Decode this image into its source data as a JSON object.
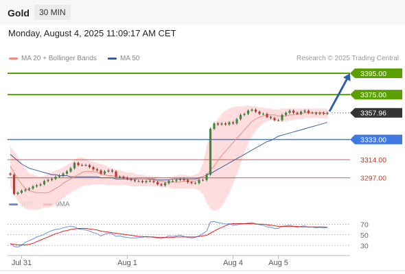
{
  "header": {
    "symbol": "Gold",
    "timeframe": "30 MIN"
  },
  "timestamp": "Monday, August 4, 2025 11:09:17 AM CET",
  "legend_main": [
    {
      "label": "MA 20 + Bollinger Bands",
      "color": "#f28b82"
    },
    {
      "label": "MA 50",
      "color": "#3d5a99"
    }
  ],
  "legend_rsi": [
    {
      "label": "RSI",
      "color": "#6b8fd4"
    },
    {
      "label": "9MA",
      "color": "#e02020"
    }
  ],
  "source": "Research © 2025 Trading Central",
  "colors": {
    "up": "#3a8a3a",
    "down": "#c0392b",
    "target": "#5aa000",
    "pivot": "#3f78e0",
    "support": "#c0392b",
    "current": "#333333",
    "band": "#fdd7d7"
  },
  "chart_data": {
    "type": "candlestick",
    "title": "Gold",
    "timeframe": "30 MIN",
    "x_ticks": [
      "Jul 31",
      "Aug 1",
      "Aug 4",
      "Aug 5"
    ],
    "x_tick_index": [
      3,
      31,
      59,
      71
    ],
    "ylim": [
      3282,
      3404
    ],
    "levels": [
      {
        "value": 3395.0,
        "label": "3395.00",
        "kind": "target"
      },
      {
        "value": 3375.0,
        "label": "3375.00",
        "kind": "target"
      },
      {
        "value": 3357.96,
        "label": "3357.96",
        "kind": "current"
      },
      {
        "value": 3333.0,
        "label": "3333.00",
        "kind": "pivot"
      },
      {
        "value": 3314.0,
        "label": "3314.00",
        "kind": "support"
      },
      {
        "value": 3297.0,
        "label": "3297.00",
        "kind": "support"
      }
    ],
    "arrow": {
      "from": 3357.96,
      "to": 3395.0
    },
    "close": [
      3300,
      3282,
      3283,
      3285,
      3286,
      3287,
      3289,
      3290,
      3291,
      3294,
      3295,
      3296,
      3298,
      3299,
      3301,
      3303,
      3306,
      3311,
      3309,
      3309,
      3309,
      3307,
      3305,
      3304,
      3301,
      3303,
      3304,
      3303,
      3298,
      3298,
      3297,
      3296,
      3295,
      3294,
      3294,
      3293,
      3294,
      3294,
      3293,
      3291,
      3290,
      3292,
      3294,
      3294,
      3295,
      3296,
      3295,
      3293,
      3292,
      3292,
      3295,
      3295,
      3300,
      3343,
      3348,
      3347,
      3348,
      3347,
      3349,
      3348,
      3352,
      3356,
      3357,
      3360,
      3361,
      3359,
      3357,
      3357,
      3354,
      3353,
      3351,
      3351,
      3356,
      3358,
      3360,
      3358,
      3357,
      3359,
      3360,
      3358,
      3358,
      3357,
      3358,
      3357,
      3358
    ],
    "ma20": [
      3308,
      3302,
      3296,
      3291,
      3287,
      3285,
      3284,
      3283,
      3283,
      3283,
      3283,
      3285,
      3287,
      3289,
      3292,
      3294,
      3296,
      3298,
      3300,
      3302,
      3303,
      3303,
      3303,
      3302,
      3301,
      3300,
      3299,
      3299,
      3298,
      3298,
      3298,
      3297,
      3297,
      3297,
      3296,
      3296,
      3296,
      3295,
      3295,
      3294,
      3294,
      3293,
      3293,
      3293,
      3293,
      3293,
      3294,
      3294,
      3294,
      3294,
      3296,
      3298,
      3300,
      3304,
      3308,
      3313,
      3318,
      3322,
      3326,
      3330,
      3334,
      3338,
      3342,
      3346,
      3350,
      3352,
      3354,
      3355,
      3356,
      3356,
      3356,
      3355,
      3355,
      3355,
      3356,
      3356,
      3357,
      3357,
      3358,
      3358,
      3358,
      3358,
      3358,
      3358,
      3357
    ],
    "bb_upper": [
      3327,
      3322,
      3317,
      3311,
      3306,
      3301,
      3300,
      3299,
      3298,
      3299,
      3301,
      3302,
      3304,
      3305,
      3307,
      3309,
      3311,
      3314,
      3316,
      3316,
      3315,
      3313,
      3312,
      3311,
      3310,
      3309,
      3307,
      3306,
      3305,
      3304,
      3303,
      3302,
      3302,
      3301,
      3300,
      3300,
      3299,
      3299,
      3298,
      3298,
      3297,
      3297,
      3298,
      3298,
      3299,
      3300,
      3300,
      3299,
      3299,
      3300,
      3302,
      3310,
      3326,
      3340,
      3347,
      3352,
      3357,
      3360,
      3362,
      3363,
      3364,
      3364,
      3364,
      3365,
      3364,
      3364,
      3363,
      3363,
      3362,
      3362,
      3361,
      3361,
      3362,
      3362,
      3362,
      3362,
      3362,
      3362,
      3362,
      3362,
      3362,
      3362,
      3362,
      3362,
      3362
    ],
    "bb_lower": [
      3289,
      3282,
      3275,
      3271,
      3268,
      3267,
      3267,
      3267,
      3268,
      3269,
      3269,
      3270,
      3272,
      3275,
      3278,
      3281,
      3283,
      3285,
      3287,
      3289,
      3290,
      3290,
      3291,
      3291,
      3291,
      3291,
      3290,
      3290,
      3290,
      3290,
      3290,
      3290,
      3289,
      3289,
      3289,
      3289,
      3289,
      3289,
      3289,
      3289,
      3288,
      3288,
      3288,
      3287,
      3287,
      3287,
      3287,
      3287,
      3287,
      3287,
      3285,
      3282,
      3274,
      3268,
      3266,
      3267,
      3270,
      3276,
      3283,
      3291,
      3300,
      3310,
      3320,
      3329,
      3336,
      3341,
      3345,
      3348,
      3350,
      3351,
      3351,
      3350,
      3350,
      3350,
      3351,
      3351,
      3352,
      3352,
      3353,
      3353,
      3353,
      3353,
      3353,
      3353,
      3352
    ],
    "ma50": [
      3319,
      3316,
      3313,
      3310,
      3308,
      3306,
      3305,
      3304,
      3303,
      3302,
      3301,
      3300,
      3300,
      3299,
      3299,
      3299,
      3298,
      3298,
      3298,
      3298,
      3298,
      3298,
      3298,
      3298,
      3297,
      3297,
      3297,
      3297,
      3296,
      3296,
      3296,
      3296,
      3296,
      3296,
      3296,
      3296,
      3296,
      3296,
      3296,
      3295,
      3295,
      3295,
      3295,
      3296,
      3296,
      3296,
      3296,
      3296,
      3296,
      3296,
      3297,
      3298,
      3300,
      3301,
      3303,
      3305,
      3307,
      3309,
      3311,
      3313,
      3315,
      3317,
      3319,
      3321,
      3323,
      3325,
      3327,
      3329,
      3331,
      3332,
      3334,
      3336,
      3337,
      3338,
      3339,
      3340,
      3341,
      3342,
      3343,
      3344,
      3345,
      3346,
      3347,
      3348,
      3349
    ],
    "rsi": {
      "ticks": [
        30,
        50,
        70
      ],
      "ylim": [
        20,
        82
      ],
      "rsi": [
        34,
        28,
        27,
        30,
        36,
        39,
        42,
        46,
        48,
        51,
        55,
        58,
        60,
        61,
        63,
        65,
        66,
        65,
        61,
        60,
        59,
        57,
        54,
        52,
        48,
        51,
        53,
        52,
        47,
        48,
        46,
        45,
        44,
        44,
        45,
        45,
        47,
        46,
        45,
        44,
        43,
        45,
        48,
        47,
        48,
        49,
        47,
        45,
        44,
        45,
        48,
        52,
        57,
        74,
        75,
        73,
        72,
        70,
        71,
        68,
        69,
        70,
        71,
        72,
        73,
        71,
        69,
        68,
        65,
        64,
        62,
        62,
        66,
        67,
        68,
        66,
        64,
        66,
        67,
        64,
        65,
        63,
        64,
        63,
        64
      ],
      "ma9": [
        33,
        32,
        31,
        31,
        31,
        32,
        34,
        37,
        40,
        43,
        46,
        49,
        52,
        54,
        57,
        58,
        60,
        61,
        62,
        62,
        62,
        61,
        60,
        59,
        57,
        56,
        55,
        54,
        53,
        52,
        51,
        50,
        49,
        48,
        47,
        47,
        46,
        46,
        46,
        45,
        45,
        45,
        45,
        45,
        46,
        46,
        46,
        46,
        46,
        46,
        47,
        48,
        49,
        53,
        57,
        61,
        64,
        67,
        70,
        71,
        71,
        71,
        71,
        71,
        71,
        70,
        70,
        70,
        69,
        68,
        67,
        66,
        66,
        66,
        66,
        66,
        66,
        65,
        65,
        65,
        65,
        65,
        65,
        65,
        64
      ]
    }
  }
}
